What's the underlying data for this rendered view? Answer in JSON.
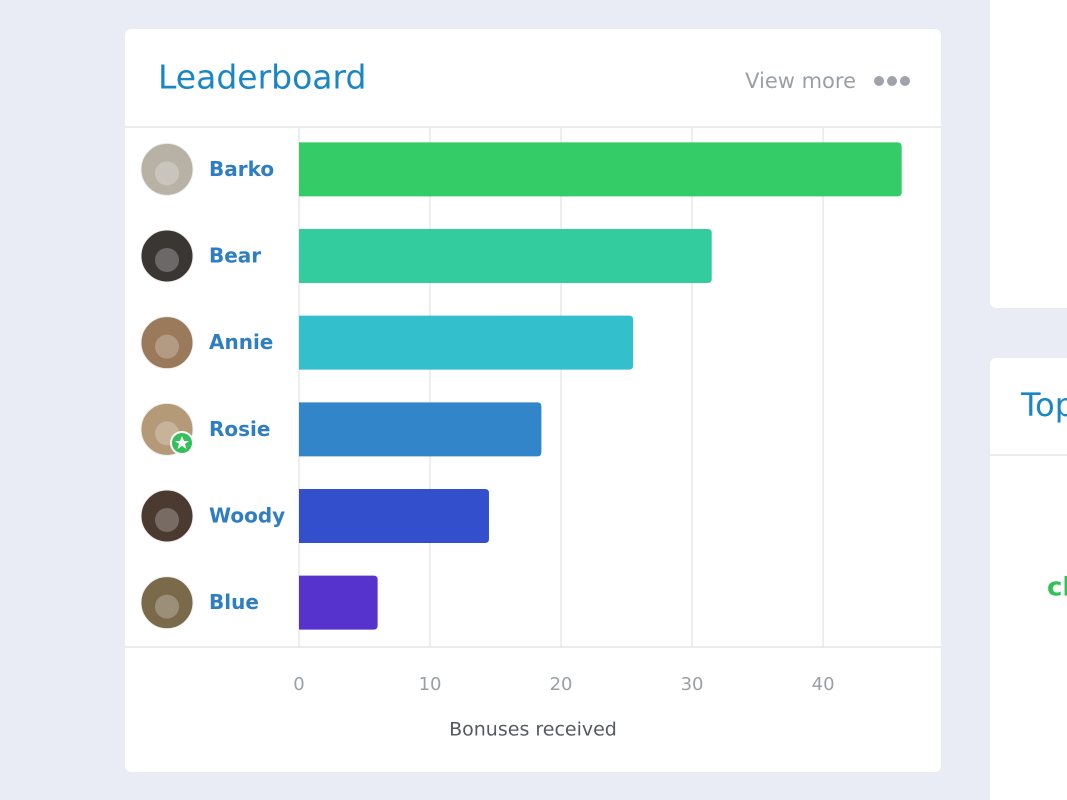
{
  "card": {
    "action": "View more"
  },
  "chart_data": {
    "type": "bar",
    "orientation": "horizontal",
    "title": "Leaderboard",
    "categories": [
      "Barko",
      "Bear",
      "Annie",
      "Rosie",
      "Woody",
      "Blue"
    ],
    "values": [
      46,
      31.5,
      25.5,
      18.5,
      14.5,
      6
    ],
    "colors": [
      "#33cc66",
      "#33cc9e",
      "#33bfcc",
      "#3385c9",
      "#334fcc",
      "#5533cc"
    ],
    "xlabel": "Bonuses received",
    "xlim": [
      0,
      49
    ],
    "xticks": [
      0,
      10,
      20,
      30,
      40
    ],
    "grid": true
  },
  "side_panels": [
    {
      "title": "Top",
      "text": "cl"
    }
  ]
}
